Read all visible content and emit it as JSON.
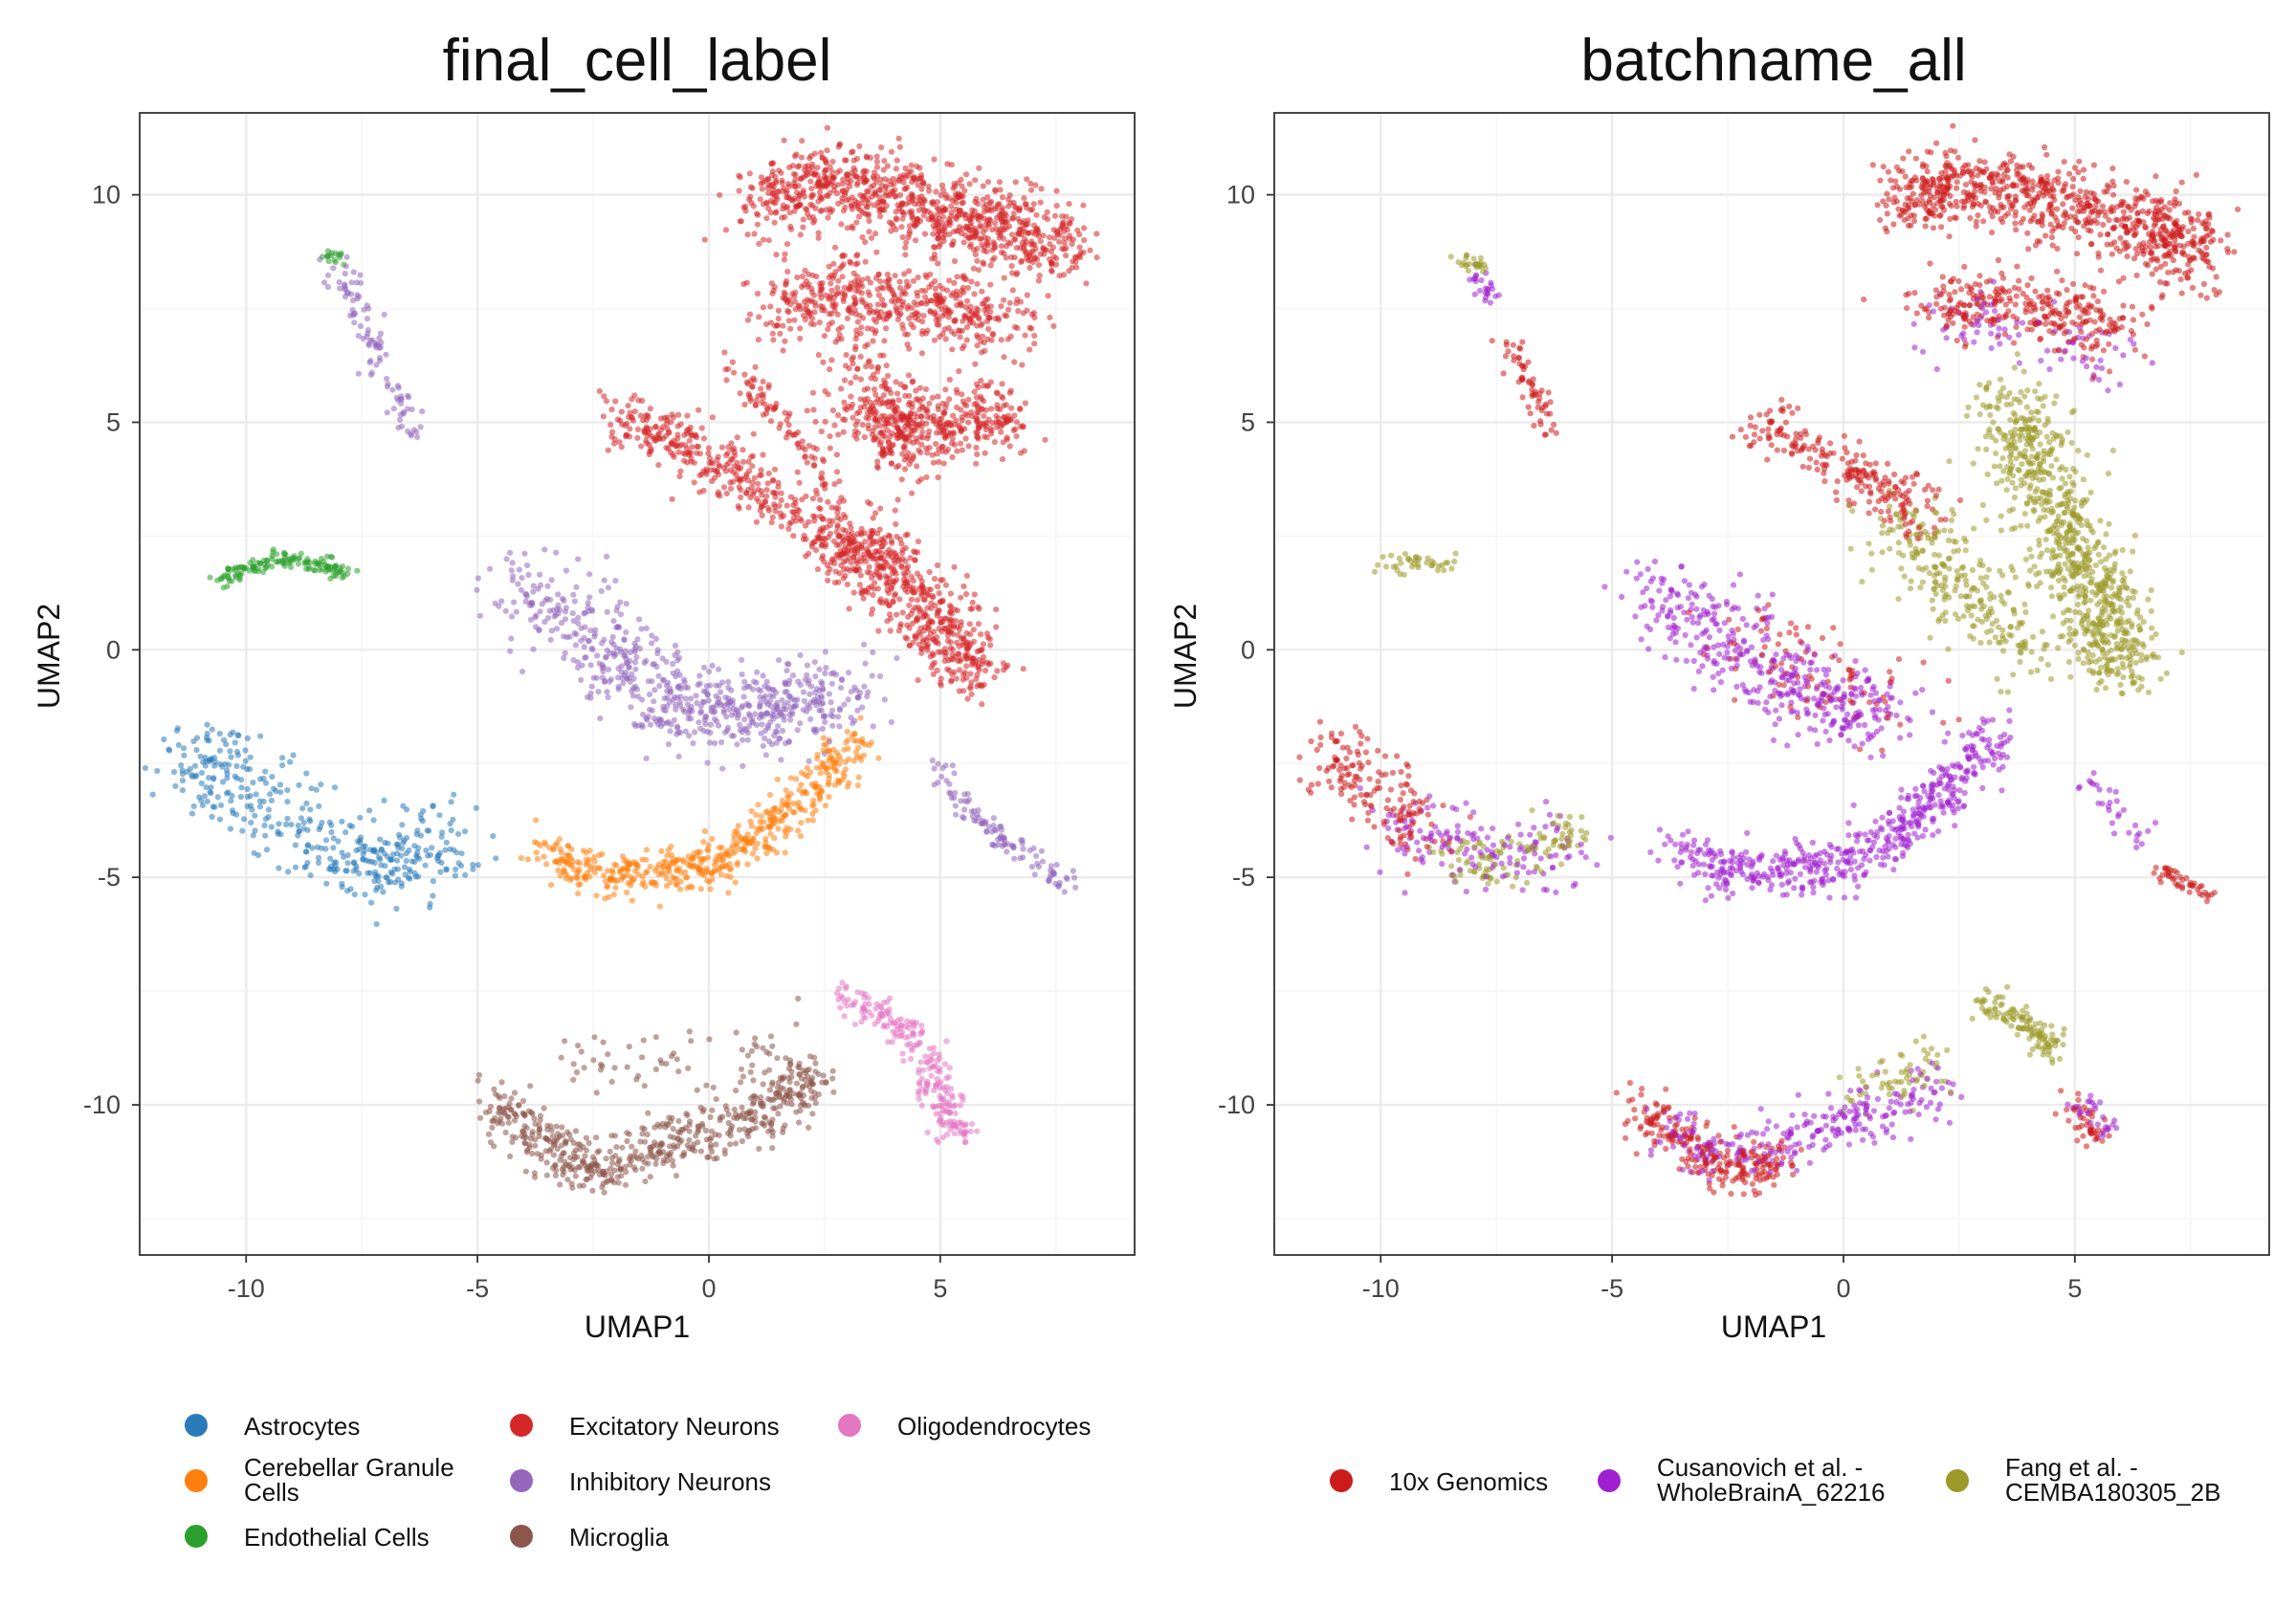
{
  "chart_data": [
    {
      "type": "scatter",
      "title": "final_cell_label",
      "xlabel": "UMAP1",
      "ylabel": "UMAP2",
      "xlim": [
        -12.3,
        9.2
      ],
      "ylim": [
        -13.3,
        11.8
      ],
      "xticks": [
        -10,
        -5,
        0,
        5
      ],
      "yticks": [
        10,
        5,
        0,
        -5,
        -10
      ],
      "grid": true,
      "legend_position": "bottom",
      "series": [
        {
          "name": "Astrocytes",
          "color": "#2b7bba",
          "clusters": [
            {
              "x": [
                -11.2,
                -10.6,
                -9.5,
                -8.3,
                -7.2,
                -6.3,
                -5.6
              ],
              "y": [
                -2.8,
                -2.4,
                -3.5,
                -4.3,
                -4.7,
                -4.5,
                -4.1
              ],
              "spread": 0.55,
              "n": 400
            }
          ]
        },
        {
          "name": "Cerebellar Granule Cells",
          "color": "#ff7f0e",
          "clusters": [
            {
              "x": [
                -3.5,
                -2.5,
                -1.0,
                0.0,
                1.0,
                1.8,
                2.6,
                3.3
              ],
              "y": [
                -4.4,
                -4.9,
                -4.9,
                -4.7,
                -4.1,
                -3.5,
                -2.7,
                -1.9
              ],
              "spread": 0.3,
              "n": 520
            }
          ]
        },
        {
          "name": "Endothelial Cells",
          "color": "#2ca02c",
          "clusters": [
            {
              "x": [
                -10.6,
                -10.0,
                -9.2,
                -8.4,
                -7.9
              ],
              "y": [
                1.5,
                1.8,
                2.0,
                1.9,
                1.7
              ],
              "spread": 0.12,
              "n": 140
            },
            {
              "x": [
                -8.3,
                -7.9
              ],
              "y": [
                8.7,
                8.6
              ],
              "spread": 0.08,
              "n": 15
            }
          ]
        },
        {
          "name": "Excitatory Neurons",
          "color": "#d62728",
          "clusters": [
            {
              "x": [
                1.2,
                2.0,
                3.0,
                4.0,
                5.0,
                6.0,
                7.0,
                7.5
              ],
              "y": [
                9.7,
                10.2,
                10.2,
                10.0,
                9.6,
                9.4,
                9.2,
                8.6
              ],
              "spread": 0.5,
              "n": 900
            },
            {
              "x": [
                1.5,
                2.5,
                3.5,
                4.5,
                5.5,
                6.5
              ],
              "y": [
                7.4,
                7.7,
                7.9,
                7.6,
                7.4,
                7.2
              ],
              "spread": 0.5,
              "n": 500
            },
            {
              "x": [
                3.2,
                4.0,
                5.0,
                5.8,
                6.3
              ],
              "y": [
                5.3,
                5.0,
                4.9,
                5.0,
                5.1
              ],
              "spread": 0.5,
              "n": 400
            },
            {
              "x": [
                3.3,
                3.8,
                4.5,
                5.2,
                5.8
              ],
              "y": [
                2.5,
                1.8,
                1.0,
                0.2,
                -0.5
              ],
              "spread": 0.45,
              "n": 500
            },
            {
              "x": [
                -2.0,
                -1.0,
                0.0,
                1.2,
                2.5,
                3.3
              ],
              "y": [
                5.2,
                4.7,
                4.1,
                3.4,
                2.6,
                1.8
              ],
              "spread": 0.35,
              "n": 420
            },
            {
              "x": [
                0.5,
                1.2,
                2.0,
                2.8
              ],
              "y": [
                6.2,
                5.4,
                4.5,
                3.5
              ],
              "spread": 0.18,
              "n": 90
            },
            {
              "x": [
                3.0,
                3.5,
                4.0,
                4.2
              ],
              "y": [
                7.0,
                5.8,
                4.6,
                3.8
              ],
              "spread": 0.3,
              "n": 120
            }
          ]
        },
        {
          "name": "Inhibitory Neurons",
          "color": "#9467bd",
          "clusters": [
            {
              "x": [
                -4.2,
                -3.0,
                -2.0,
                -1.0,
                0.0,
                1.0,
                2.0,
                3.0
              ],
              "y": [
                1.4,
                0.8,
                -0.2,
                -1.0,
                -1.3,
                -1.5,
                -1.2,
                -0.9
              ],
              "spread": 0.55,
              "n": 650
            },
            {
              "x": [
                -8.2,
                -7.7,
                -7.3,
                -6.8,
                -6.4
              ],
              "y": [
                8.5,
                7.8,
                6.7,
                5.6,
                4.8
              ],
              "spread": 0.18,
              "n": 100
            },
            {
              "x": [
                5.0,
                5.6,
                6.4,
                7.2,
                7.8
              ],
              "y": [
                -2.5,
                -3.5,
                -4.2,
                -4.8,
                -5.2
              ],
              "spread": 0.15,
              "n": 110
            }
          ]
        },
        {
          "name": "Microglia",
          "color": "#8c564b",
          "clusters": [
            {
              "x": [
                -4.5,
                -3.8,
                -3.0,
                -2.2,
                -1.2,
                0.0,
                1.0,
                1.8,
                2.2
              ],
              "y": [
                -10.0,
                -10.6,
                -11.2,
                -11.4,
                -11.0,
                -10.6,
                -10.2,
                -9.8,
                -9.3
              ],
              "spread": 0.35,
              "n": 560
            },
            {
              "x": [
                -3.5,
                -2.0,
                -0.5,
                1.0,
                2.0
              ],
              "y": [
                -9.3,
                -9.0,
                -9.2,
                -8.9,
                -8.4
              ],
              "spread": 0.35,
              "n": 60
            }
          ]
        },
        {
          "name": "Oligodendrocytes",
          "color": "#e377c2",
          "clusters": [
            {
              "x": [
                2.9,
                3.5,
                4.2,
                4.6,
                4.9,
                5.2,
                5.4
              ],
              "y": [
                -7.6,
                -7.9,
                -8.3,
                -8.9,
                -9.6,
                -10.3,
                -10.7
              ],
              "spread": 0.22,
              "n": 230
            }
          ]
        }
      ]
    },
    {
      "type": "scatter",
      "title": "batchname_all",
      "xlabel": "UMAP1",
      "ylabel": "UMAP2",
      "xlim": [
        -12.3,
        9.2
      ],
      "ylim": [
        -13.3,
        11.8
      ],
      "xticks": [
        -10,
        -5,
        0,
        5
      ],
      "yticks": [
        10,
        5,
        0,
        -5,
        -10
      ],
      "grid": true,
      "legend_position": "bottom",
      "series": [
        {
          "name": "10x Genomics",
          "color": "#cd1b1b",
          "clusters": [
            {
              "x": [
                1.2,
                2.5,
                4.0,
                5.5,
                7.0,
                7.5
              ],
              "y": [
                9.8,
                10.2,
                10.0,
                9.6,
                9.2,
                8.6
              ],
              "spread": 0.5,
              "n": 800
            },
            {
              "x": [
                2.0,
                3.0,
                4.0,
                5.0,
                6.0
              ],
              "y": [
                7.5,
                7.7,
                7.6,
                7.3,
                7.0
              ],
              "spread": 0.45,
              "n": 300
            },
            {
              "x": [
                -2.0,
                -1.0,
                0.0,
                1.0,
                2.0
              ],
              "y": [
                5.0,
                4.5,
                4.0,
                3.5,
                2.9
              ],
              "spread": 0.35,
              "n": 220
            },
            {
              "x": [
                -7.4,
                -7.0,
                -6.6,
                -6.4
              ],
              "y": [
                7.0,
                6.2,
                5.5,
                4.8
              ],
              "spread": 0.15,
              "n": 60
            },
            {
              "x": [
                -11.2,
                -10.6,
                -9.8,
                -9.0
              ],
              "y": [
                -2.8,
                -2.2,
                -3.5,
                -4.2
              ],
              "spread": 0.45,
              "n": 160
            },
            {
              "x": [
                -4.5,
                -3.8,
                -3.0,
                -2.2,
                -1.5
              ],
              "y": [
                -10.0,
                -10.6,
                -11.2,
                -11.5,
                -11.1
              ],
              "spread": 0.3,
              "n": 230
            },
            {
              "x": [
                6.8,
                7.4,
                7.9
              ],
              "y": [
                -4.8,
                -5.1,
                -5.4
              ],
              "spread": 0.12,
              "n": 45
            },
            {
              "x": [
                4.8,
                5.2,
                5.4
              ],
              "y": [
                -9.8,
                -10.3,
                -10.8
              ],
              "spread": 0.18,
              "n": 40
            },
            {
              "x": [
                -2.5,
                -1.5,
                -0.5,
                0.5,
                1.5
              ],
              "y": [
                0.5,
                0.0,
                -0.5,
                -1.0,
                -1.4
              ],
              "spread": 0.6,
              "n": 90
            }
          ]
        },
        {
          "name": "Cusanovich et al. - WholeBrainA_62216",
          "color": "#a020d0",
          "clusters": [
            {
              "x": [
                -3.5,
                -2.5,
                -1.0,
                0.0,
                1.0,
                1.8,
                2.6,
                3.3
              ],
              "y": [
                -4.4,
                -4.9,
                -4.9,
                -4.7,
                -4.1,
                -3.5,
                -2.7,
                -1.9
              ],
              "spread": 0.32,
              "n": 520
            },
            {
              "x": [
                -4.2,
                -3.0,
                -2.0,
                -1.0,
                0.0,
                1.0
              ],
              "y": [
                1.4,
                0.6,
                -0.2,
                -0.9,
                -1.2,
                -1.4
              ],
              "spread": 0.55,
              "n": 400
            },
            {
              "x": [
                -3.8,
                -3.0,
                -2.0,
                -1.0,
                0.0,
                1.0,
                2.0
              ],
              "y": [
                -10.5,
                -11.0,
                -11.0,
                -10.7,
                -10.4,
                -10.1,
                -9.7
              ],
              "spread": 0.35,
              "n": 260
            },
            {
              "x": [
                -10.0,
                -9.0,
                -8.0,
                -7.0,
                -6.0
              ],
              "y": [
                -3.5,
                -4.0,
                -4.4,
                -4.5,
                -4.3
              ],
              "spread": 0.5,
              "n": 150
            },
            {
              "x": [
                -8.0,
                -7.6
              ],
              "y": [
                8.3,
                7.8
              ],
              "spread": 0.15,
              "n": 25
            },
            {
              "x": [
                2.0,
                3.0,
                4.0,
                5.0,
                6.0
              ],
              "y": [
                7.0,
                7.3,
                7.0,
                6.6,
                6.4
              ],
              "spread": 0.5,
              "n": 80
            },
            {
              "x": [
                5.0,
                5.5,
                6.0
              ],
              "y": [
                -9.8,
                -10.3,
                -10.6
              ],
              "spread": 0.18,
              "n": 30
            },
            {
              "x": [
                5.2,
                5.9,
                6.6
              ],
              "y": [
                -2.8,
                -3.6,
                -4.2
              ],
              "spread": 0.18,
              "n": 30
            }
          ]
        },
        {
          "name": "Fang et al. - CEMBA180305_2B",
          "color": "#9d9a2a",
          "clusters": [
            {
              "x": [
                3.6,
                4.3,
                5.0,
                5.6,
                6.0
              ],
              "y": [
                5.5,
                3.8,
                2.2,
                0.8,
                -0.5
              ],
              "spread": 0.5,
              "n": 800
            },
            {
              "x": [
                1.0,
                2.0,
                3.0,
                4.0
              ],
              "y": [
                3.0,
                2.0,
                1.0,
                0.0
              ],
              "spread": 0.5,
              "n": 250
            },
            {
              "x": [
                3.0,
                3.6,
                4.2,
                4.5
              ],
              "y": [
                -7.7,
                -8.0,
                -8.4,
                -8.8
              ],
              "spread": 0.2,
              "n": 120
            },
            {
              "x": [
                -8.5,
                -7.5,
                -6.5,
                -5.8
              ],
              "y": [
                -4.6,
                -4.8,
                -4.4,
                -4.0
              ],
              "spread": 0.35,
              "n": 110
            },
            {
              "x": [
                -10.0,
                -9.2,
                -8.4
              ],
              "y": [
                1.8,
                2.0,
                1.8
              ],
              "spread": 0.12,
              "n": 40
            },
            {
              "x": [
                -8.2,
                -7.8
              ],
              "y": [
                8.6,
                8.4
              ],
              "spread": 0.12,
              "n": 25
            },
            {
              "x": [
                0.0,
                0.8,
                1.5,
                2.0
              ],
              "y": [
                -9.8,
                -9.6,
                -9.4,
                -9.0
              ],
              "spread": 0.3,
              "n": 60
            }
          ]
        }
      ]
    }
  ]
}
